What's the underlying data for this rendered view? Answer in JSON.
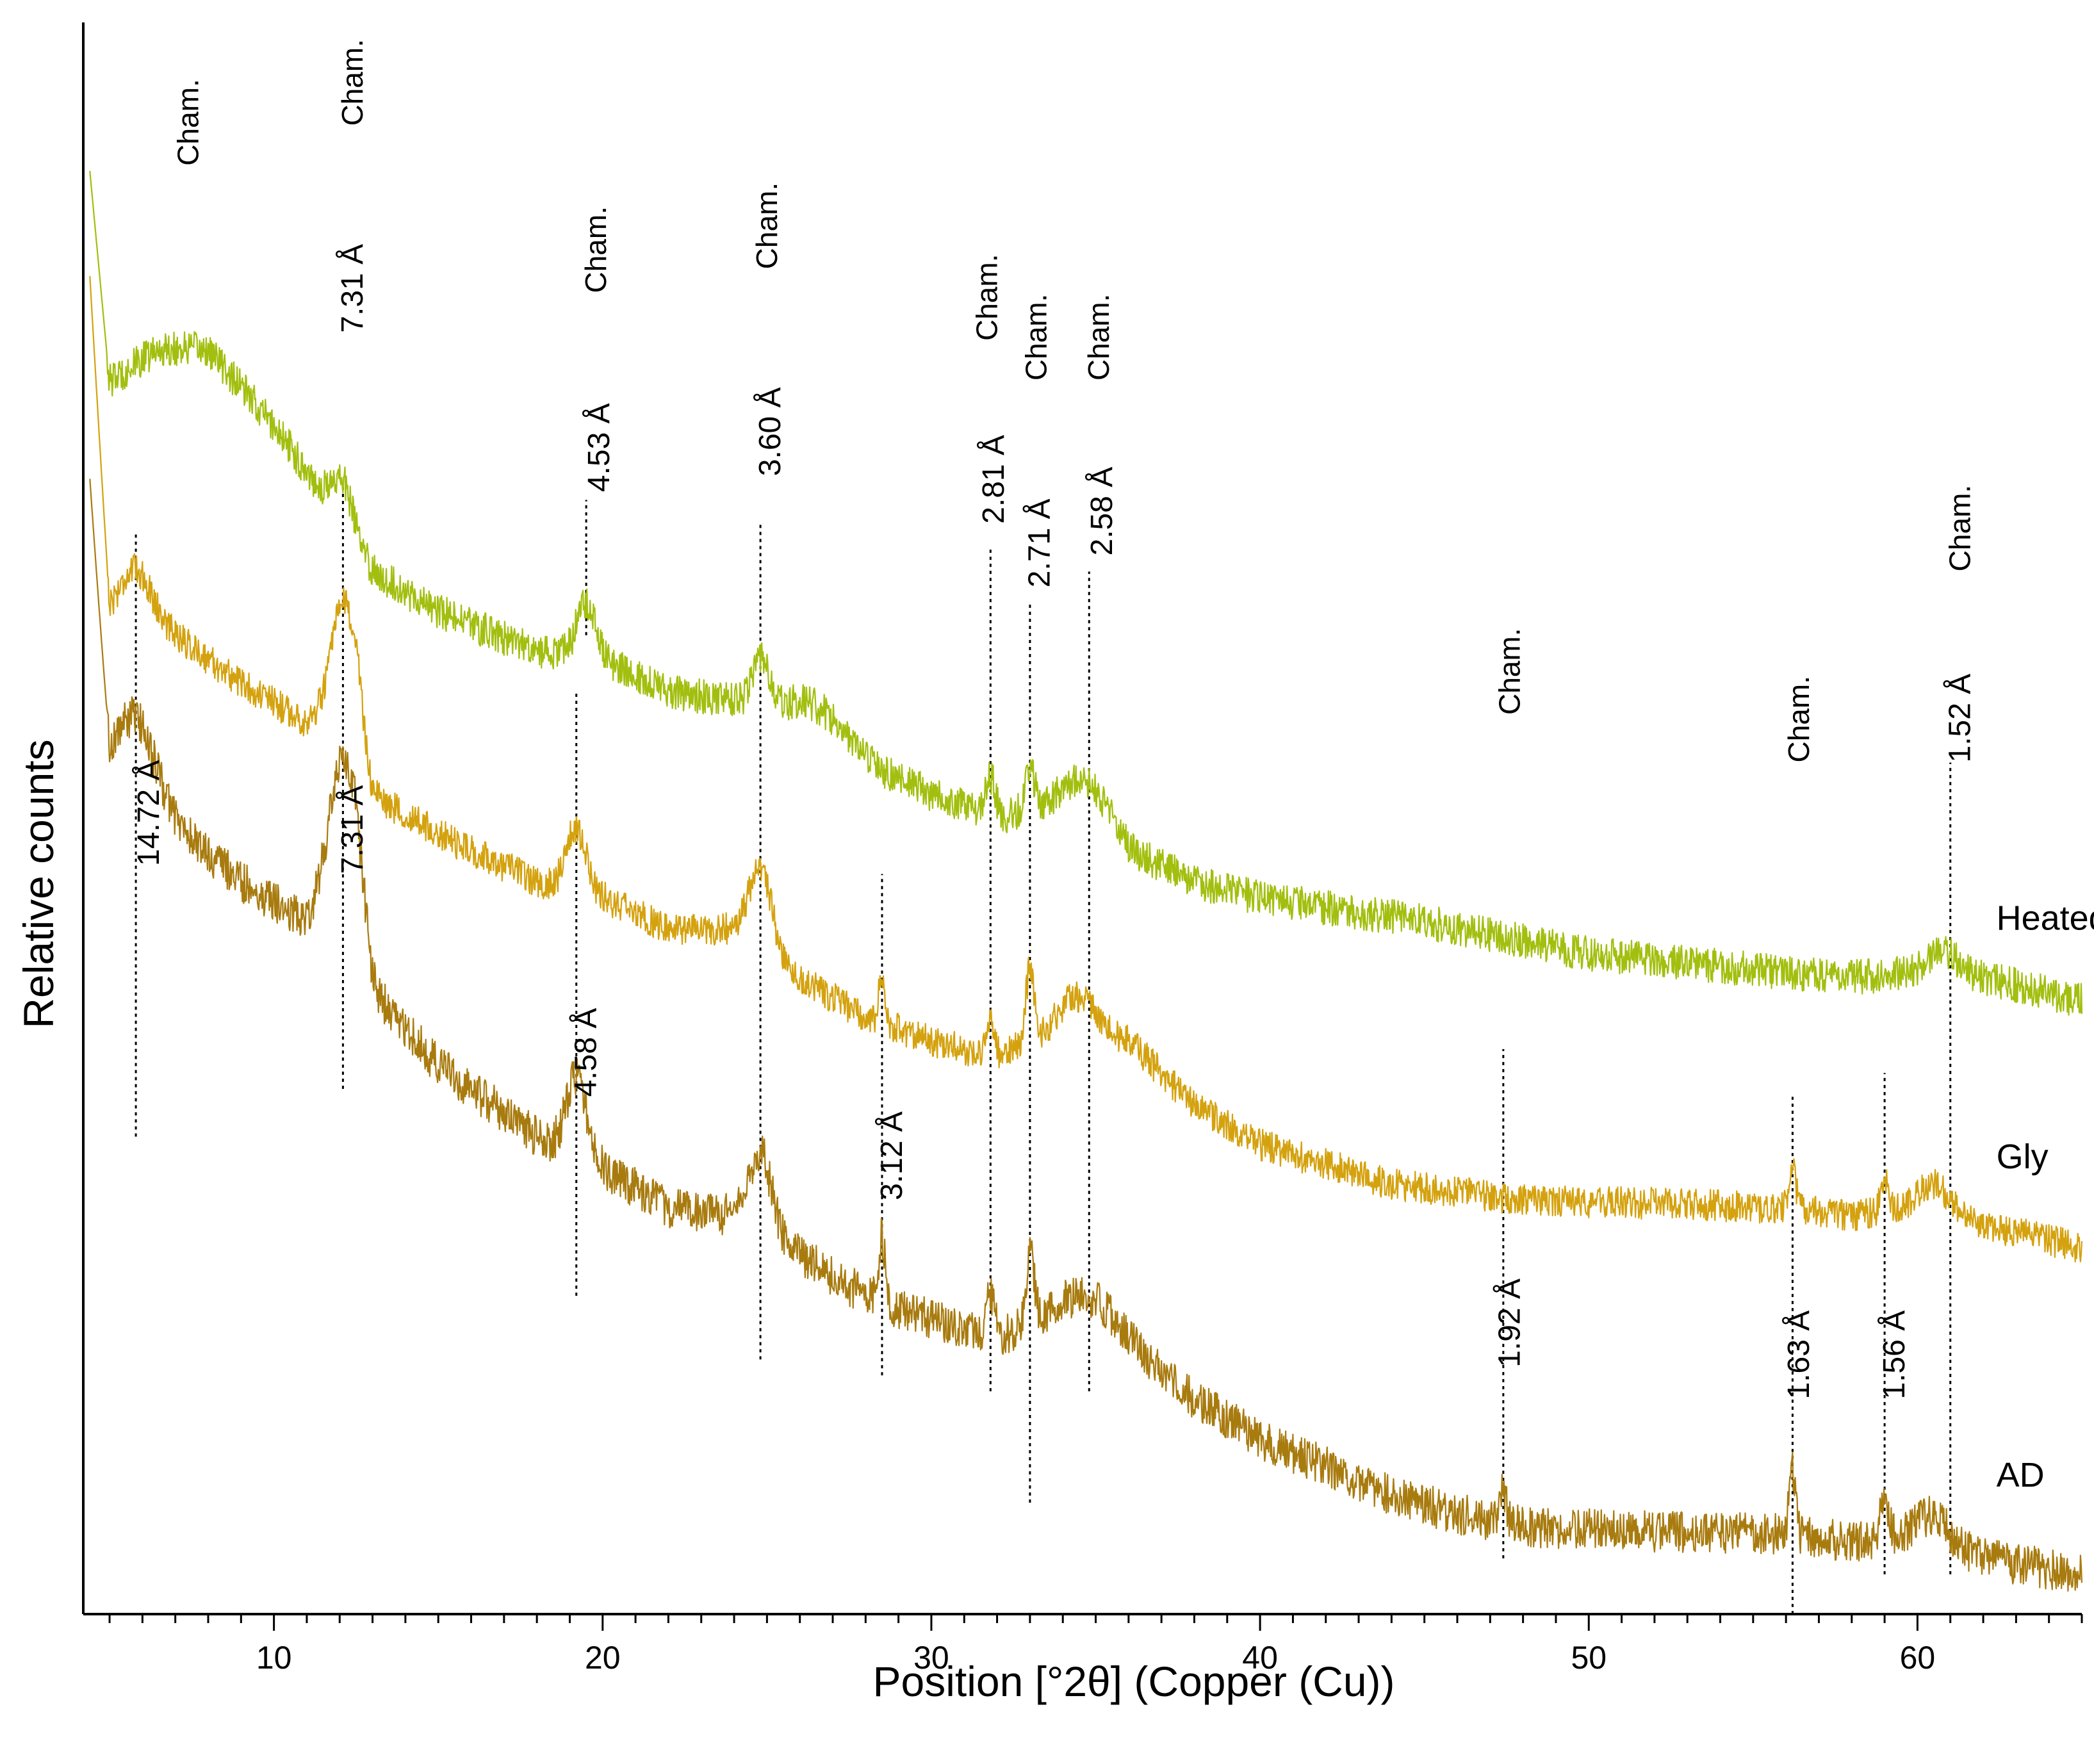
{
  "chart_data": {
    "type": "line",
    "title": "",
    "xlabel": "Position [°2θ] (Copper (Cu))",
    "ylabel": "Relative counts",
    "xlim": [
      4.2,
      65
    ],
    "ylim": [
      0,
      100
    ],
    "x_ticks": [
      10,
      20,
      30,
      40,
      50,
      60
    ],
    "x_tick_labels": [
      "10",
      "20",
      "30",
      "40",
      "50",
      "60"
    ],
    "grid": false,
    "series": [
      {
        "name": "Heated",
        "color": "#a2bf0f",
        "baseline": [
          [
            4.4,
            90
          ],
          [
            5.0,
            76.5
          ],
          [
            6.5,
            78
          ],
          [
            8,
            78
          ],
          [
            10,
            74
          ],
          [
            12,
            69
          ],
          [
            13,
            65.5
          ],
          [
            15,
            63
          ],
          [
            18,
            60.5
          ],
          [
            20,
            60
          ],
          [
            22,
            58
          ],
          [
            25,
            57
          ],
          [
            28,
            53.5
          ],
          [
            30,
            51.5
          ],
          [
            32,
            50
          ],
          [
            34,
            51
          ],
          [
            36,
            48
          ],
          [
            38,
            46
          ],
          [
            40,
            45
          ],
          [
            45,
            43.5
          ],
          [
            50,
            41.5
          ],
          [
            55,
            40.5
          ],
          [
            58,
            40
          ],
          [
            60,
            40.3
          ],
          [
            62,
            40
          ],
          [
            65,
            38.5
          ]
        ],
        "peaks": [
          [
            7.2,
            1.5,
            2.2
          ],
          [
            12.1,
            2.5,
            0.3
          ],
          [
            19.5,
            3.5,
            0.28
          ],
          [
            24.8,
            3,
            0.25
          ],
          [
            26.5,
            1.8,
            0.8
          ],
          [
            31.8,
            2.5,
            0.15
          ],
          [
            33.0,
            2.5,
            0.15
          ],
          [
            34.8,
            2.5,
            0.6
          ],
          [
            60.8,
            1.5,
            0.45
          ]
        ],
        "noise": 1.1
      },
      {
        "name": "Gly",
        "color": "#d4a20f",
        "baseline": [
          [
            4.4,
            84
          ],
          [
            5.0,
            62.5
          ],
          [
            7,
            61.5
          ],
          [
            9,
            58.5
          ],
          [
            11,
            56
          ],
          [
            12.5,
            58
          ],
          [
            13,
            51.5
          ],
          [
            15,
            49
          ],
          [
            18,
            46
          ],
          [
            20,
            45
          ],
          [
            22,
            43
          ],
          [
            24,
            43
          ],
          [
            26,
            40
          ],
          [
            28,
            37.5
          ],
          [
            30,
            36
          ],
          [
            32,
            35
          ],
          [
            34,
            37
          ],
          [
            36,
            36
          ],
          [
            38,
            32
          ],
          [
            40,
            29.5
          ],
          [
            44,
            27
          ],
          [
            48,
            26
          ],
          [
            52,
            25.8
          ],
          [
            56,
            25.5
          ],
          [
            58,
            25
          ],
          [
            60,
            25.5
          ],
          [
            62,
            24.5
          ],
          [
            65,
            23
          ]
        ],
        "peaks": [
          [
            5.8,
            3.5,
            0.5
          ],
          [
            12.1,
            6,
            0.35
          ],
          [
            19.2,
            4,
            0.3
          ],
          [
            24.8,
            5,
            0.35
          ],
          [
            28.5,
            3,
            0.1
          ],
          [
            31.8,
            2,
            0.12
          ],
          [
            33.0,
            4.5,
            0.13
          ],
          [
            34.5,
            2,
            0.5
          ],
          [
            56.2,
            2.5,
            0.1
          ],
          [
            59.0,
            2,
            0.12
          ],
          [
            60.5,
            1.8,
            0.45
          ]
        ],
        "noise": 1.0
      },
      {
        "name": "AD",
        "color": "#a87b0f",
        "baseline": [
          [
            4.4,
            71
          ],
          [
            5.0,
            52.5
          ],
          [
            7,
            49.5
          ],
          [
            9,
            46
          ],
          [
            11,
            43.5
          ],
          [
            12.5,
            45
          ],
          [
            13,
            39
          ],
          [
            15,
            34.5
          ],
          [
            18,
            30
          ],
          [
            20,
            28
          ],
          [
            22,
            25.5
          ],
          [
            24,
            25
          ],
          [
            26,
            22.5
          ],
          [
            28,
            20
          ],
          [
            30,
            18.5
          ],
          [
            32,
            17.5
          ],
          [
            34,
            18.5
          ],
          [
            36,
            17
          ],
          [
            38,
            13.5
          ],
          [
            40,
            11
          ],
          [
            44,
            7.5
          ],
          [
            46,
            6.3
          ],
          [
            48,
            5.5
          ],
          [
            52,
            5.2
          ],
          [
            56,
            5
          ],
          [
            58,
            4.5
          ],
          [
            60,
            5
          ],
          [
            62,
            3.5
          ],
          [
            65,
            2.5
          ]
        ],
        "peaks": [
          [
            5.8,
            5,
            0.6
          ],
          [
            12.1,
            9,
            0.45
          ],
          [
            19.2,
            5,
            0.3
          ],
          [
            24.8,
            5,
            0.35
          ],
          [
            28.5,
            4,
            0.1
          ],
          [
            31.8,
            2.5,
            0.12
          ],
          [
            33.0,
            4.5,
            0.13
          ],
          [
            34.8,
            2,
            0.8
          ],
          [
            47.4,
            2,
            0.1
          ],
          [
            56.2,
            4,
            0.1
          ],
          [
            59.0,
            2.5,
            0.12
          ],
          [
            60.5,
            1.5,
            0.45
          ]
        ],
        "noise": 1.3
      }
    ],
    "series_labels": [
      {
        "text": "Heated",
        "x": 62.4,
        "y": 43
      },
      {
        "text": "Gly",
        "x": 62.4,
        "y": 28
      },
      {
        "text": "AD",
        "x": 62.4,
        "y": 8
      }
    ],
    "reference_lines": [
      {
        "x": 5.8,
        "y1": 30,
        "y2": 68
      },
      {
        "x": 12.1,
        "y1": 33,
        "y2": 71
      },
      {
        "x": 19.5,
        "y1": 61.5,
        "y2": 70,
        "bold": true
      },
      {
        "x": 19.2,
        "y1": 20,
        "y2": 58
      },
      {
        "x": 24.8,
        "y1": 16,
        "y2": 68.5
      },
      {
        "x": 28.5,
        "y1": 15,
        "y2": 46.5
      },
      {
        "x": 31.8,
        "y1": 14,
        "y2": 67
      },
      {
        "x": 33.0,
        "y1": 7,
        "y2": 63.5
      },
      {
        "x": 34.8,
        "y1": 14,
        "y2": 65.5
      },
      {
        "x": 47.4,
        "y1": 3.5,
        "y2": 35.5
      },
      {
        "x": 56.2,
        "y1": 0,
        "y2": 32.5
      },
      {
        "x": 59.0,
        "y1": 2.5,
        "y2": 34
      },
      {
        "x": 61.0,
        "y1": 2.5,
        "y2": 53.5
      }
    ],
    "annotations": [
      {
        "text": "Cham.",
        "x": 7.7,
        "y": 91,
        "kind": "mineral"
      },
      {
        "text": "Cham.",
        "x": 12.7,
        "y": 93.5,
        "kind": "mineral"
      },
      {
        "text": "7.31 Å",
        "x": 12.7,
        "y": 80.5,
        "kind": "d"
      },
      {
        "text": "Cham.",
        "x": 20.1,
        "y": 83,
        "kind": "mineral"
      },
      {
        "text": "4.53 Å",
        "x": 20.2,
        "y": 70.5,
        "kind": "d"
      },
      {
        "text": "Cham.",
        "x": 25.3,
        "y": 84.5,
        "kind": "mineral"
      },
      {
        "text": "3.60 Å",
        "x": 25.4,
        "y": 71.5,
        "kind": "d"
      },
      {
        "text": "Cham.",
        "x": 32.0,
        "y": 80,
        "kind": "mineral"
      },
      {
        "text": "2.81 Å",
        "x": 32.2,
        "y": 68.5,
        "kind": "d"
      },
      {
        "text": "Cham.",
        "x": 33.5,
        "y": 77.5,
        "kind": "mineral"
      },
      {
        "text": "2.71 Å",
        "x": 33.6,
        "y": 64.5,
        "kind": "d"
      },
      {
        "text": "Cham.",
        "x": 35.4,
        "y": 77.5,
        "kind": "mineral"
      },
      {
        "text": "2.58 Å",
        "x": 35.5,
        "y": 66.5,
        "kind": "d"
      },
      {
        "text": "14.72 Å",
        "x": 6.5,
        "y": 47,
        "kind": "d"
      },
      {
        "text": "7.31 Å",
        "x": 12.7,
        "y": 46.5,
        "kind": "d"
      },
      {
        "text": "4.58 Å",
        "x": 19.8,
        "y": 32.5,
        "kind": "d"
      },
      {
        "text": "3.12 Å",
        "x": 29.1,
        "y": 26,
        "kind": "d"
      },
      {
        "text": "Cham.",
        "x": 47.9,
        "y": 56.5,
        "kind": "mineral"
      },
      {
        "text": "1.92 Å",
        "x": 47.9,
        "y": 15.5,
        "kind": "d"
      },
      {
        "text": "Cham.",
        "x": 56.7,
        "y": 53.5,
        "kind": "mineral"
      },
      {
        "text": "1.63 Å",
        "x": 56.7,
        "y": 13.5,
        "kind": "d"
      },
      {
        "text": "1.56 Å",
        "x": 59.6,
        "y": 13.5,
        "kind": "d"
      },
      {
        "text": "Cham.",
        "x": 61.6,
        "y": 65.5,
        "kind": "mineral"
      },
      {
        "text": "1.52 Å",
        "x": 61.6,
        "y": 53.5,
        "kind": "d"
      }
    ]
  }
}
